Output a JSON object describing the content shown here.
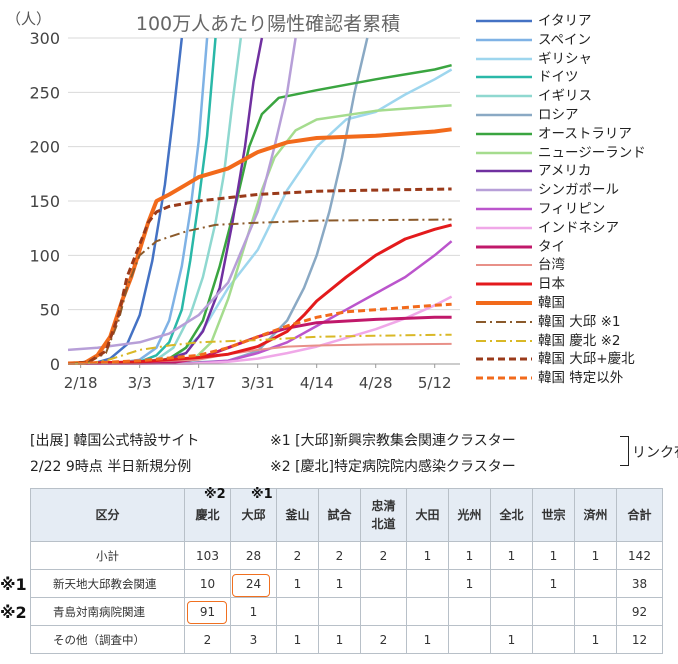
{
  "chart_data": {
    "type": "line",
    "title": "100万人あたり陽性確認者累積",
    "ylabel": "（人）",
    "x_ticks": [
      "2/18",
      "3/3",
      "3/17",
      "3/31",
      "4/14",
      "4/28",
      "5/12"
    ],
    "y_ticks": [
      "0",
      "50",
      "100",
      "150",
      "200",
      "250",
      "300"
    ],
    "ylim": [
      0,
      300
    ],
    "xlim": [
      "2/15",
      "5/18"
    ],
    "grid": true,
    "legend_position": "right",
    "series": [
      {
        "name": "イタリア",
        "color": "#4472c4",
        "dash": "solid",
        "width": 2.5,
        "points": [
          [
            "2/15",
            0
          ],
          [
            "2/21",
            0.5
          ],
          [
            "2/25",
            5
          ],
          [
            "2/29",
            18
          ],
          [
            "3/3",
            45
          ],
          [
            "3/6",
            95
          ],
          [
            "3/9",
            165
          ],
          [
            "3/11",
            230
          ],
          [
            "3/13",
            300
          ]
        ]
      },
      {
        "name": "スペイン",
        "color": "#7fb2e5",
        "dash": "solid",
        "width": 2.5,
        "points": [
          [
            "2/15",
            0
          ],
          [
            "2/26",
            0.5
          ],
          [
            "3/3",
            4
          ],
          [
            "3/7",
            15
          ],
          [
            "3/10",
            40
          ],
          [
            "3/13",
            90
          ],
          [
            "3/15",
            140
          ],
          [
            "3/17",
            205
          ],
          [
            "3/19",
            300
          ]
        ]
      },
      {
        "name": "ギリシャ",
        "color": "#9ed6ee",
        "dash": "solid",
        "width": 2.5,
        "points": [
          [
            "2/15",
            0
          ],
          [
            "3/10",
            2
          ],
          [
            "3/17",
            25
          ],
          [
            "3/24",
            70
          ],
          [
            "3/31",
            105
          ],
          [
            "4/7",
            160
          ],
          [
            "4/14",
            200
          ],
          [
            "4/21",
            225
          ],
          [
            "4/28",
            232
          ],
          [
            "5/5",
            248
          ],
          [
            "5/12",
            262
          ],
          [
            "5/16",
            271
          ]
        ]
      },
      {
        "name": "ドイツ",
        "color": "#2ab8a8",
        "dash": "solid",
        "width": 2.5,
        "points": [
          [
            "2/15",
            0
          ],
          [
            "2/26",
            0.5
          ],
          [
            "3/3",
            2
          ],
          [
            "3/7",
            8
          ],
          [
            "3/10",
            20
          ],
          [
            "3/13",
            50
          ],
          [
            "3/15",
            95
          ],
          [
            "3/17",
            150
          ],
          [
            "3/19",
            210
          ],
          [
            "3/21",
            300
          ]
        ]
      },
      {
        "name": "イギリス",
        "color": "#8fd8d0",
        "dash": "solid",
        "width": 2.5,
        "points": [
          [
            "2/15",
            0
          ],
          [
            "3/1",
            0.5
          ],
          [
            "3/7",
            4
          ],
          [
            "3/11",
            15
          ],
          [
            "3/15",
            45
          ],
          [
            "3/18",
            80
          ],
          [
            "3/21",
            130
          ],
          [
            "3/23",
            175
          ],
          [
            "3/25",
            240
          ],
          [
            "3/27",
            300
          ]
        ]
      },
      {
        "name": "ロシア",
        "color": "#8aa9c4",
        "dash": "solid",
        "width": 2.5,
        "points": [
          [
            "2/15",
            0
          ],
          [
            "3/10",
            0.2
          ],
          [
            "3/24",
            3
          ],
          [
            "3/31",
            12
          ],
          [
            "4/7",
            40
          ],
          [
            "4/11",
            70
          ],
          [
            "4/14",
            100
          ],
          [
            "4/17",
            140
          ],
          [
            "4/20",
            190
          ],
          [
            "4/23",
            250
          ],
          [
            "4/26",
            300
          ]
        ]
      },
      {
        "name": "オーストラリア",
        "color": "#3aa540",
        "dash": "solid",
        "width": 2.5,
        "points": [
          [
            "2/15",
            0
          ],
          [
            "3/3",
            0.5
          ],
          [
            "3/10",
            5
          ],
          [
            "3/14",
            15
          ],
          [
            "3/18",
            40
          ],
          [
            "3/22",
            90
          ],
          [
            "3/26",
            150
          ],
          [
            "3/29",
            200
          ],
          [
            "4/1",
            230
          ],
          [
            "4/5",
            245
          ],
          [
            "4/14",
            252
          ],
          [
            "4/28",
            262
          ],
          [
            "5/12",
            271
          ],
          [
            "5/16",
            275
          ]
        ]
      },
      {
        "name": "ニュージーランド",
        "color": "#a5dc8e",
        "dash": "solid",
        "width": 2.5,
        "points": [
          [
            "2/15",
            0
          ],
          [
            "3/10",
            0.5
          ],
          [
            "3/16",
            5
          ],
          [
            "3/20",
            20
          ],
          [
            "3/24",
            60
          ],
          [
            "3/28",
            110
          ],
          [
            "4/1",
            160
          ],
          [
            "4/4",
            190
          ],
          [
            "4/9",
            215
          ],
          [
            "4/14",
            225
          ],
          [
            "4/28",
            233
          ],
          [
            "5/12",
            237
          ],
          [
            "5/16",
            238
          ]
        ]
      },
      {
        "name": "アメリカ",
        "color": "#7030a0",
        "dash": "solid",
        "width": 2.5,
        "points": [
          [
            "2/15",
            0
          ],
          [
            "3/1",
            0.3
          ],
          [
            "3/8",
            2
          ],
          [
            "3/14",
            10
          ],
          [
            "3/18",
            30
          ],
          [
            "3/22",
            70
          ],
          [
            "3/25",
            130
          ],
          [
            "3/28",
            200
          ],
          [
            "3/30",
            260
          ],
          [
            "4/1",
            300
          ]
        ]
      },
      {
        "name": "シンガポール",
        "color": "#b79fd8",
        "dash": "solid",
        "width": 2.5,
        "points": [
          [
            "2/15",
            13
          ],
          [
            "2/22",
            15
          ],
          [
            "3/3",
            20
          ],
          [
            "3/10",
            28
          ],
          [
            "3/17",
            45
          ],
          [
            "3/24",
            75
          ],
          [
            "3/31",
            140
          ],
          [
            "4/4",
            200
          ],
          [
            "4/7",
            250
          ],
          [
            "4/9",
            300
          ]
        ]
      },
      {
        "name": "フィリピン",
        "color": "#bb55cc",
        "dash": "solid",
        "width": 2.5,
        "points": [
          [
            "2/15",
            0
          ],
          [
            "3/15",
            0.5
          ],
          [
            "3/24",
            3
          ],
          [
            "3/31",
            10
          ],
          [
            "4/7",
            20
          ],
          [
            "4/14",
            35
          ],
          [
            "4/21",
            50
          ],
          [
            "4/28",
            65
          ],
          [
            "5/5",
            80
          ],
          [
            "5/12",
            100
          ],
          [
            "5/16",
            113
          ]
        ]
      },
      {
        "name": "インドネシア",
        "color": "#f0a8e8",
        "dash": "solid",
        "width": 2.5,
        "points": [
          [
            "2/15",
            0
          ],
          [
            "3/15",
            0.3
          ],
          [
            "3/24",
            2
          ],
          [
            "3/31",
            5
          ],
          [
            "4/7",
            10
          ],
          [
            "4/14",
            16
          ],
          [
            "4/21",
            24
          ],
          [
            "4/28",
            32
          ],
          [
            "5/5",
            42
          ],
          [
            "5/12",
            54
          ],
          [
            "5/16",
            62
          ]
        ]
      },
      {
        "name": "タイ",
        "color": "#c0186a",
        "dash": "solid",
        "width": 3,
        "points": [
          [
            "2/15",
            0.5
          ],
          [
            "3/3",
            0.7
          ],
          [
            "3/10",
            1
          ],
          [
            "3/17",
            5
          ],
          [
            "3/24",
            15
          ],
          [
            "3/31",
            25
          ],
          [
            "4/7",
            33
          ],
          [
            "4/14",
            38
          ],
          [
            "4/28",
            41
          ],
          [
            "5/12",
            43
          ],
          [
            "5/16",
            43
          ]
        ]
      },
      {
        "name": "台湾",
        "color": "#e89088",
        "dash": "solid",
        "width": 2,
        "points": [
          [
            "2/15",
            1
          ],
          [
            "3/3",
            2
          ],
          [
            "3/17",
            4
          ],
          [
            "3/24",
            9
          ],
          [
            "3/31",
            13
          ],
          [
            "4/7",
            16
          ],
          [
            "4/14",
            17
          ],
          [
            "4/28",
            18
          ],
          [
            "5/16",
            18.5
          ]
        ]
      },
      {
        "name": "日本",
        "color": "#e31a1c",
        "dash": "solid",
        "width": 3,
        "points": [
          [
            "2/15",
            0.5
          ],
          [
            "3/3",
            2
          ],
          [
            "3/17",
            6
          ],
          [
            "3/24",
            9
          ],
          [
            "3/31",
            16
          ],
          [
            "4/7",
            30
          ],
          [
            "4/11",
            45
          ],
          [
            "4/14",
            58
          ],
          [
            "4/21",
            80
          ],
          [
            "4/28",
            100
          ],
          [
            "5/5",
            115
          ],
          [
            "5/12",
            124
          ],
          [
            "5/16",
            128
          ]
        ]
      },
      {
        "name": "韓国",
        "color": "#f26a1b",
        "dash": "solid",
        "width": 4,
        "points": [
          [
            "2/15",
            0.5
          ],
          [
            "2/19",
            1
          ],
          [
            "2/22",
            8
          ],
          [
            "2/25",
            25
          ],
          [
            "2/28",
            60
          ],
          [
            "3/1",
            80
          ],
          [
            "3/3",
            105
          ],
          [
            "3/5",
            130
          ],
          [
            "3/7",
            150
          ],
          [
            "3/10",
            156
          ],
          [
            "3/14",
            165
          ],
          [
            "3/17",
            172
          ],
          [
            "3/24",
            180
          ],
          [
            "3/31",
            195
          ],
          [
            "4/7",
            204
          ],
          [
            "4/14",
            208
          ],
          [
            "4/28",
            210
          ],
          [
            "5/12",
            214
          ],
          [
            "5/16",
            216
          ]
        ]
      },
      {
        "name": "韓国 大邱 ※1",
        "color": "#8b5a2b",
        "dash": "dashdot",
        "width": 2,
        "points": [
          [
            "2/15",
            0
          ],
          [
            "2/20",
            2
          ],
          [
            "2/24",
            10
          ],
          [
            "2/27",
            40
          ],
          [
            "2/29",
            70
          ],
          [
            "3/3",
            100
          ],
          [
            "3/7",
            113
          ],
          [
            "3/14",
            122
          ],
          [
            "3/21",
            128
          ],
          [
            "3/31",
            130
          ],
          [
            "4/14",
            132
          ],
          [
            "5/16",
            133
          ]
        ]
      },
      {
        "name": "韓国 慶北 ※2",
        "color": "#d9b826",
        "dash": "dashdot",
        "width": 2,
        "points": [
          [
            "2/15",
            0
          ],
          [
            "2/20",
            0.5
          ],
          [
            "2/24",
            3
          ],
          [
            "2/28",
            8
          ],
          [
            "3/3",
            13
          ],
          [
            "3/10",
            17
          ],
          [
            "3/17",
            20
          ],
          [
            "3/31",
            22
          ],
          [
            "4/14",
            25
          ],
          [
            "4/28",
            26
          ],
          [
            "5/16",
            27
          ]
        ]
      },
      {
        "name": "韓国 大邱+慶北",
        "color": "#9a3a1a",
        "dash": "dash",
        "width": 3,
        "points": [
          [
            "2/15",
            0
          ],
          [
            "2/20",
            2
          ],
          [
            "2/24",
            12
          ],
          [
            "2/27",
            45
          ],
          [
            "2/29",
            80
          ],
          [
            "3/3",
            110
          ],
          [
            "3/5",
            130
          ],
          [
            "3/7",
            140
          ],
          [
            "3/10",
            145
          ],
          [
            "3/17",
            150
          ],
          [
            "3/24",
            153
          ],
          [
            "3/31",
            156
          ],
          [
            "4/14",
            159
          ],
          [
            "4/28",
            160
          ],
          [
            "5/16",
            161
          ]
        ]
      },
      {
        "name": "韓国 特定以外",
        "color": "#f26a1b",
        "dash": "dash",
        "width": 3,
        "points": [
          [
            "2/15",
            0
          ],
          [
            "3/3",
            3
          ],
          [
            "3/17",
            8
          ],
          [
            "3/24",
            15
          ],
          [
            "3/31",
            25
          ],
          [
            "4/7",
            35
          ],
          [
            "4/14",
            43
          ],
          [
            "4/21",
            48
          ],
          [
            "4/28",
            50
          ],
          [
            "5/12",
            54
          ],
          [
            "5/16",
            55
          ]
        ]
      }
    ]
  },
  "source": {
    "line1": "[出展] 韓国公式特設サイト",
    "line2": "2/22 9時点 半日新規分例",
    "note1": "※1 [大邱]新興宗教集会関連クラスター",
    "note2": "※2 [慶北]特定病院院内感染クラスター",
    "link_label": "リンク有"
  },
  "table": {
    "top_marks": [
      "※2",
      "※1"
    ],
    "side_marks": [
      "※1",
      "※2"
    ],
    "headers": [
      "区分",
      "慶北",
      "大邱",
      "釜山",
      "試合",
      "忠清\n北道",
      "大田",
      "光州",
      "全北",
      "世宗",
      "済州",
      "合計"
    ],
    "rows": [
      {
        "label": "小計",
        "cells": [
          "103",
          "28",
          "2",
          "2",
          "2",
          "1",
          "1",
          "1",
          "1",
          "1",
          "142"
        ]
      },
      {
        "label": "新天地大邱教会関連",
        "cells": [
          "10",
          "24",
          "1",
          "1",
          "",
          "",
          "1",
          "",
          "1",
          "",
          "38"
        ]
      },
      {
        "label": "青島対南病院関連",
        "cells": [
          "91",
          "1",
          "",
          "",
          "",
          "",
          "",
          "",
          "",
          "",
          "92"
        ]
      },
      {
        "label": "その他（調査中）",
        "cells": [
          "2",
          "3",
          "1",
          "1",
          "2",
          "1",
          "",
          "1",
          "",
          "1",
          "12"
        ]
      }
    ],
    "highlight_color": "#f07020"
  }
}
